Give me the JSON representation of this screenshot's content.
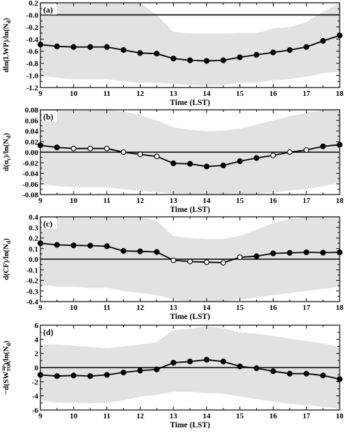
{
  "chart_data": [
    {
      "type": "line",
      "panel": "(a)",
      "xlabel": "Time (LST)",
      "ylabel": "dln(LWP)/ln(N_d)",
      "xlim": [
        9,
        18
      ],
      "ylim": [
        -1.2,
        0.2
      ],
      "xticks": [
        "9",
        "10",
        "11",
        "12",
        "13",
        "14",
        "15",
        "16",
        "17",
        "18"
      ],
      "yticks": [
        "-1.2",
        "-1.0",
        "-0.8",
        "-0.6",
        "-0.4",
        "-0.2",
        "-0.0",
        "0.2"
      ],
      "x": [
        9,
        9.5,
        10,
        10.5,
        11,
        11.5,
        12,
        12.5,
        13,
        13.5,
        14,
        14.5,
        15,
        15.5,
        16,
        16.5,
        17,
        17.5,
        18
      ],
      "y": [
        -0.49,
        -0.52,
        -0.53,
        -0.53,
        -0.53,
        -0.58,
        -0.63,
        -0.64,
        -0.72,
        -0.75,
        -0.76,
        -0.75,
        -0.7,
        -0.66,
        -0.62,
        -0.58,
        -0.53,
        -0.43,
        -0.34
      ],
      "filled": [
        true,
        true,
        true,
        true,
        true,
        true,
        true,
        true,
        true,
        true,
        true,
        true,
        true,
        true,
        true,
        true,
        true,
        true,
        true
      ],
      "band_upper": [
        0.2,
        0.2,
        0.2,
        0.2,
        0.2,
        0.2,
        0.2,
        0.0,
        -0.28,
        -0.31,
        -0.31,
        -0.31,
        -0.3,
        -0.3,
        -0.22,
        -0.2,
        -0.12,
        0.05,
        0.2
      ],
      "band_lower": [
        -1.0,
        -1.04,
        -1.06,
        -1.06,
        -1.06,
        -1.1,
        -1.12,
        -1.12,
        -1.14,
        -1.16,
        -1.17,
        -1.16,
        -1.12,
        -1.12,
        -1.08,
        -1.06,
        -1.02,
        -0.96,
        -0.94
      ]
    },
    {
      "type": "line",
      "panel": "(b)",
      "xlabel": "Time (LST)",
      "ylabel": "d(α_c)/ln(N_d)",
      "xlim": [
        9,
        18
      ],
      "ylim": [
        -0.08,
        0.08
      ],
      "xticks": [
        "9",
        "10",
        "11",
        "12",
        "13",
        "14",
        "15",
        "16",
        "17",
        "18"
      ],
      "yticks": [
        "-0.08",
        "-0.06",
        "-0.04",
        "-0.02",
        "0.00",
        "0.02",
        "0.04",
        "0.06",
        "0.08"
      ],
      "x": [
        9,
        9.5,
        10,
        10.5,
        11,
        11.5,
        12,
        12.5,
        13,
        13.5,
        14,
        14.5,
        15,
        15.5,
        16,
        16.5,
        17,
        17.5,
        18
      ],
      "y": [
        0.013,
        0.009,
        0.007,
        0.007,
        0.007,
        0.0,
        -0.004,
        -0.008,
        -0.021,
        -0.022,
        -0.027,
        -0.025,
        -0.017,
        -0.011,
        -0.006,
        0.0,
        0.004,
        0.011,
        0.014
      ],
      "filled": [
        true,
        true,
        false,
        false,
        false,
        false,
        false,
        false,
        true,
        true,
        true,
        true,
        true,
        true,
        false,
        false,
        false,
        true,
        true
      ],
      "band_upper": [
        0.08,
        0.08,
        0.08,
        0.08,
        0.08,
        0.077,
        0.07,
        0.06,
        0.047,
        0.042,
        0.04,
        0.041,
        0.044,
        0.052,
        0.06,
        0.068,
        0.074,
        0.08,
        0.08
      ],
      "band_lower": [
        -0.06,
        -0.064,
        -0.066,
        -0.066,
        -0.066,
        -0.07,
        -0.073,
        -0.075,
        -0.078,
        -0.08,
        -0.08,
        -0.08,
        -0.08,
        -0.079,
        -0.076,
        -0.072,
        -0.07,
        -0.064,
        -0.058
      ]
    },
    {
      "type": "line",
      "panel": "(c)",
      "xlabel": "Time (LST)",
      "ylabel": "d(CF)/ln(N_d)",
      "xlim": [
        9,
        18
      ],
      "ylim": [
        -0.4,
        0.4
      ],
      "xticks": [
        "9",
        "10",
        "11",
        "12",
        "13",
        "14",
        "15",
        "16",
        "17",
        "18"
      ],
      "yticks": [
        "-0.4",
        "-0.3",
        "-0.2",
        "-0.1",
        "0.0",
        "0.1",
        "0.2",
        "0.3",
        "0.4"
      ],
      "x": [
        9,
        9.5,
        10,
        10.5,
        11,
        11.5,
        12,
        12.5,
        13,
        13.5,
        14,
        14.5,
        15,
        15.5,
        16,
        16.5,
        17,
        17.5,
        18
      ],
      "y": [
        0.15,
        0.135,
        0.13,
        0.128,
        0.122,
        0.078,
        0.074,
        0.068,
        -0.01,
        -0.022,
        -0.028,
        -0.033,
        0.018,
        0.028,
        0.055,
        0.06,
        0.065,
        0.062,
        0.065
      ],
      "filled": [
        true,
        true,
        true,
        true,
        true,
        true,
        true,
        true,
        false,
        false,
        false,
        false,
        false,
        true,
        true,
        true,
        true,
        true,
        true
      ],
      "band_upper": [
        0.4,
        0.4,
        0.4,
        0.4,
        0.4,
        0.4,
        0.4,
        0.36,
        0.22,
        0.2,
        0.19,
        0.19,
        0.22,
        0.28,
        0.34,
        0.38,
        0.4,
        0.4,
        0.4
      ],
      "band_lower": [
        -0.24,
        -0.26,
        -0.26,
        -0.27,
        -0.27,
        -0.3,
        -0.32,
        -0.34,
        -0.38,
        -0.4,
        -0.4,
        -0.4,
        -0.38,
        -0.36,
        -0.34,
        -0.32,
        -0.3,
        -0.28,
        -0.26
      ]
    },
    {
      "type": "line",
      "panel": "(d)",
      "xlabel": "Time (LST)",
      "ylabel": "−d(SW^up_TOA)/ln(N_d)",
      "xlim": [
        9,
        18
      ],
      "ylim": [
        -7,
        7
      ],
      "xticks": [
        "9",
        "10",
        "11",
        "12",
        "13",
        "14",
        "15",
        "16",
        "17",
        "18"
      ],
      "yticks": [
        "-6",
        "-4",
        "-2",
        "0",
        "2",
        "4",
        "6"
      ],
      "x": [
        9,
        9.5,
        10,
        10.5,
        11,
        11.5,
        12,
        12.5,
        13,
        13.5,
        14,
        14.5,
        15,
        15.5,
        16,
        16.5,
        17,
        17.5,
        18
      ],
      "y": [
        -1.2,
        -1.4,
        -1.3,
        -1.4,
        -1.2,
        -0.8,
        -0.5,
        -0.3,
        0.8,
        1.0,
        1.3,
        1.0,
        0.2,
        -0.1,
        -0.6,
        -1.0,
        -1.0,
        -1.3,
        -1.9
      ],
      "filled": [
        true,
        true,
        true,
        true,
        true,
        true,
        true,
        true,
        true,
        true,
        true,
        true,
        true,
        true,
        true,
        true,
        true,
        true,
        true
      ],
      "band_upper": [
        3.8,
        3.8,
        3.6,
        3.4,
        3.2,
        3.5,
        3.8,
        4.2,
        6.2,
        6.4,
        6.8,
        6.5,
        5.8,
        5.6,
        5.2,
        4.8,
        4.4,
        4.0,
        3.4
      ],
      "band_lower": [
        -5.4,
        -5.8,
        -5.8,
        -5.9,
        -5.8,
        -5.4,
        -4.8,
        -4.5,
        -4.0,
        -4.0,
        -4.2,
        -4.3,
        -4.8,
        -5.2,
        -5.6,
        -6.0,
        -6.2,
        -6.5,
        -6.8
      ]
    }
  ]
}
